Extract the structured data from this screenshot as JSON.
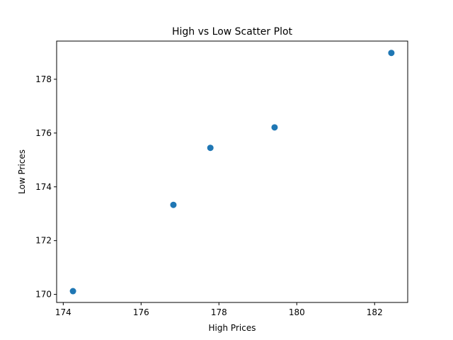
{
  "chart_data": {
    "type": "scatter",
    "title": "High vs Low Scatter Plot",
    "xlabel": "High Prices",
    "ylabel": "Low Prices",
    "xlim": [
      173.83,
      182.85
    ],
    "ylim": [
      169.7,
      179.42
    ],
    "xticks": [
      174,
      176,
      178,
      180,
      182
    ],
    "yticks": [
      170,
      172,
      174,
      176,
      178
    ],
    "grid": false,
    "marker_color": "#1f77b4",
    "series": [
      {
        "x": [
          174.25,
          176.83,
          177.78,
          179.43,
          182.43
        ],
        "y": [
          170.12,
          173.33,
          175.45,
          176.21,
          178.98
        ]
      }
    ]
  }
}
